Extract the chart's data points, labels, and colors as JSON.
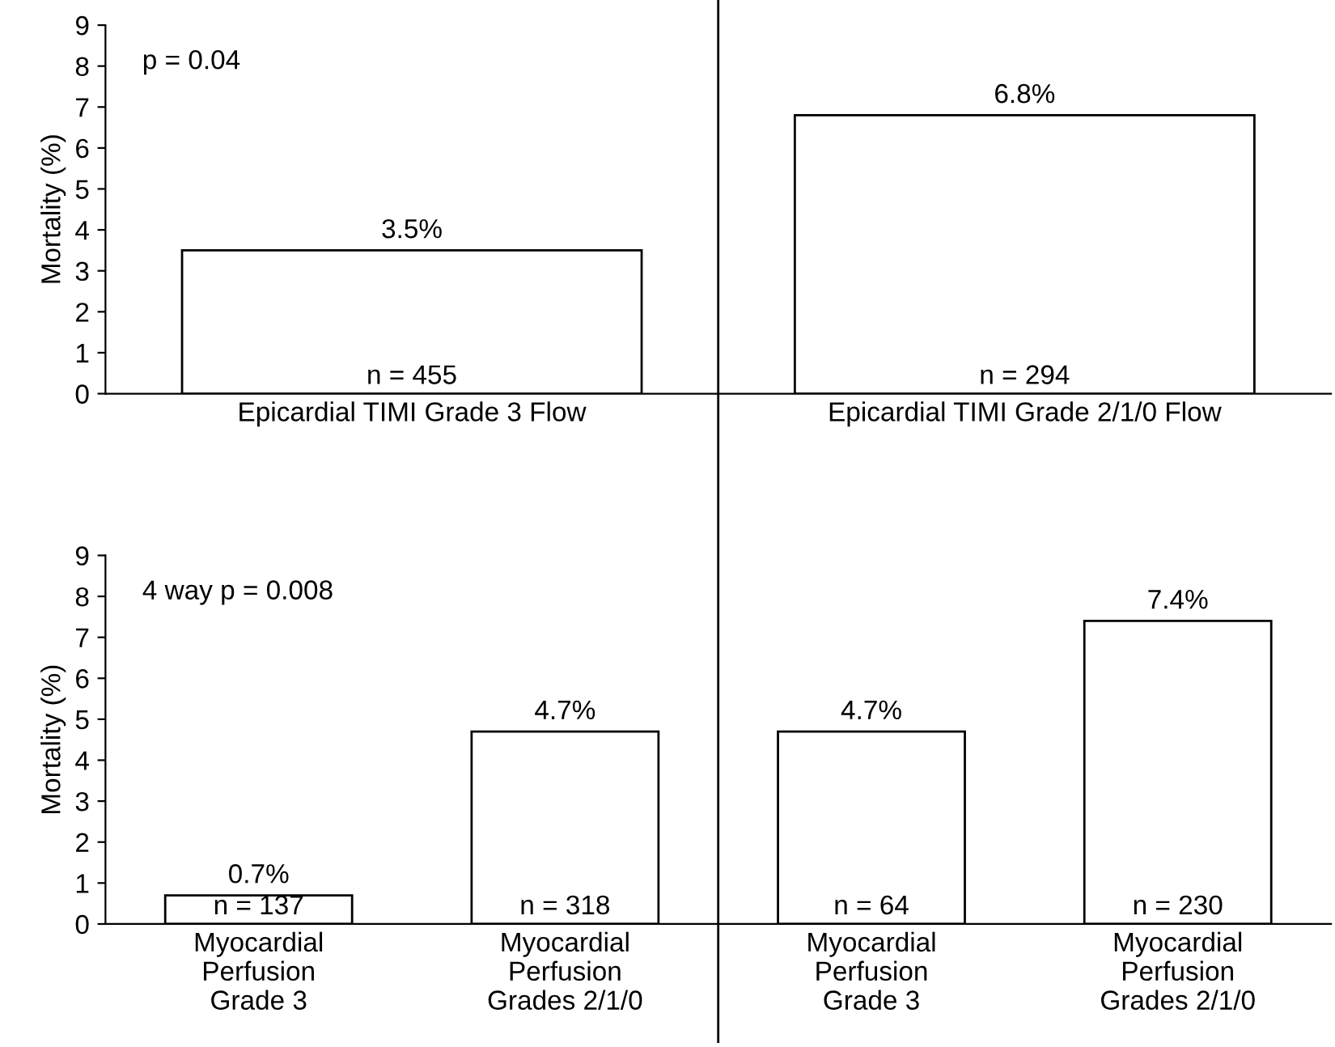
{
  "chart_data": [
    {
      "type": "bar",
      "ylabel": "Mortality (%)",
      "categories": [
        "Epicardial TIMI Grade 3 Flow",
        "Epicardial TIMI Grade 2/1/0 Flow"
      ],
      "values": [
        3.5,
        6.8
      ],
      "value_labels": [
        "3.5%",
        "6.8%"
      ],
      "colors": [
        "#ffffff",
        "#ffffff"
      ],
      "ylim": [
        0,
        9
      ],
      "yticks": [
        0,
        1,
        2,
        3,
        4,
        5,
        6,
        7,
        8,
        9
      ],
      "grid": false,
      "annotations": [
        "p = 0.04",
        "n = 455",
        "n = 294"
      ]
    },
    {
      "type": "bar",
      "ylabel": "Mortality (%)",
      "categories": [
        "Myocardial\nPerfusion\nGrade 3",
        "Myocardial\nPerfusion\nGrades 2/1/0",
        "Myocardial\nPerfusion\nGrade 3",
        "Myocardial\nPerfusion\nGrades 2/1/0"
      ],
      "values": [
        0.7,
        4.7,
        4.7,
        7.4
      ],
      "value_labels": [
        "0.7%",
        "4.7%",
        "4.7%",
        "7.4%"
      ],
      "colors": [
        "#ffffff",
        "#ffffff",
        "#ffffff",
        "#ffffff"
      ],
      "ylim": [
        0,
        9
      ],
      "yticks": [
        0,
        1,
        2,
        3,
        4,
        5,
        6,
        7,
        8,
        9
      ],
      "grid": false,
      "annotations": [
        "4 way p = 0.008",
        "n = 137",
        "n = 318",
        "n = 64",
        "n = 230"
      ]
    }
  ]
}
